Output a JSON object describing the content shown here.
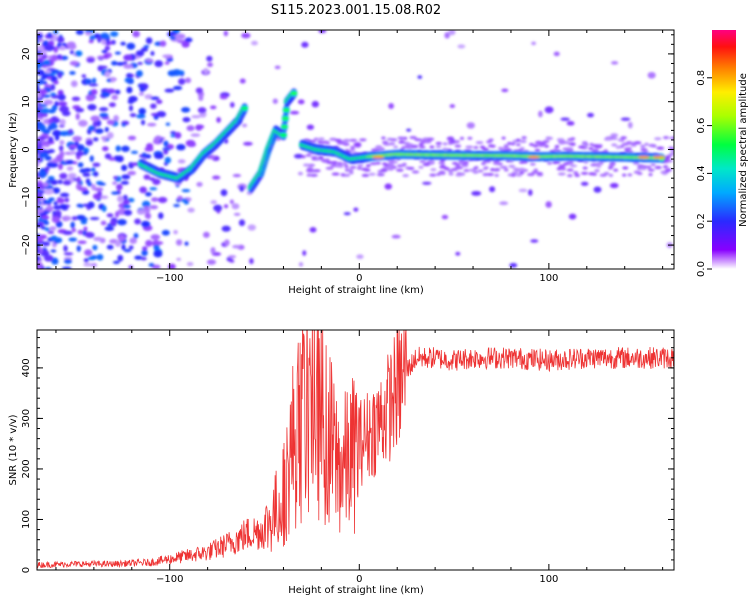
{
  "title": "S115.2023.001.15.08.R02",
  "chart_data": [
    {
      "type": "heatmap",
      "xlabel": "Height of straight line (km)",
      "ylabel": "Frequency (Hz)",
      "xlim": [
        -170,
        166
      ],
      "ylim": [
        -25,
        25
      ],
      "xticks": [
        -100,
        0,
        100
      ],
      "yticks": [
        -20,
        -10,
        0,
        10,
        20
      ],
      "colorbar": {
        "label": "Normalized spectral amplitude",
        "range": [
          0,
          1
        ],
        "ticks": [
          0.0,
          0.2,
          0.4,
          0.6,
          0.8
        ],
        "tick_labels": [
          "0.0",
          "0.2",
          "0.4",
          "0.6",
          "0.8"
        ],
        "colormap": "rainbow (purple to red)"
      },
      "ridge": [
        {
          "x": -115,
          "y": -3
        },
        {
          "x": -105,
          "y": -5
        },
        {
          "x": -95,
          "y": -6
        },
        {
          "x": -88,
          "y": -4
        },
        {
          "x": -82,
          "y": -1
        },
        {
          "x": -76,
          "y": 1
        },
        {
          "x": -70,
          "y": 3.5
        },
        {
          "x": -64,
          "y": 6
        },
        {
          "x": -60,
          "y": 9
        },
        {
          "x": -57,
          "y": -8
        },
        {
          "x": -52,
          "y": -5
        },
        {
          "x": -48,
          "y": 0
        },
        {
          "x": -44,
          "y": 4
        },
        {
          "x": -40,
          "y": 3
        },
        {
          "x": -38,
          "y": 10
        },
        {
          "x": -34,
          "y": 12
        },
        {
          "x": -30,
          "y": 1
        },
        {
          "x": -22,
          "y": 0
        },
        {
          "x": -12,
          "y": -0.5
        },
        {
          "x": -4,
          "y": -2
        },
        {
          "x": 6,
          "y": -1.5
        },
        {
          "x": 20,
          "y": -1
        },
        {
          "x": 50,
          "y": -1.2
        },
        {
          "x": 80,
          "y": -1.3
        },
        {
          "x": 95,
          "y": -1.5
        },
        {
          "x": 110,
          "y": -1.4
        },
        {
          "x": 140,
          "y": -1.6
        },
        {
          "x": 160,
          "y": -1.8
        }
      ]
    },
    {
      "type": "line",
      "xlabel": "Height of straight line (km)",
      "ylabel": "SNR (10 * v/v)",
      "xlim": [
        -170,
        166
      ],
      "ylim": [
        0,
        475
      ],
      "xticks": [
        -100,
        0,
        100
      ],
      "yticks": [
        0,
        100,
        200,
        300,
        400
      ],
      "line_color": "#ee3333",
      "series": [
        {
          "x": [
            -170,
            -150,
            -130,
            -110,
            -95,
            -80,
            -70,
            -60,
            -50,
            -45,
            -40,
            -35,
            -30,
            -25,
            -20,
            -15,
            -10,
            -5,
            0,
            5,
            10,
            15,
            20,
            25,
            30,
            40,
            50,
            60,
            80,
            100,
            120,
            140,
            166
          ],
          "values": [
            10,
            12,
            12,
            15,
            25,
            35,
            50,
            70,
            80,
            110,
            150,
            250,
            300,
            350,
            300,
            250,
            200,
            220,
            250,
            270,
            290,
            320,
            360,
            395,
            420,
            420,
            415,
            420,
            420,
            415,
            420,
            420,
            420
          ]
        }
      ]
    }
  ]
}
